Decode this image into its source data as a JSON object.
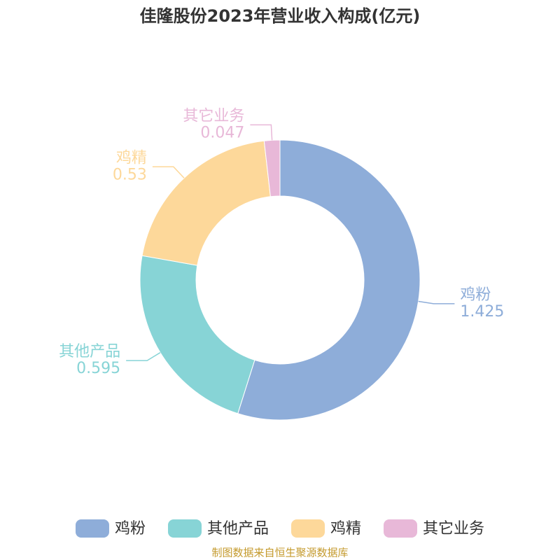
{
  "chart_data": {
    "type": "pie",
    "title": "佳隆股份2023年营业收入构成(亿元)",
    "categories": [
      "鸡粉",
      "其他产品",
      "鸡精",
      "其它业务"
    ],
    "values": [
      1.425,
      0.595,
      0.53,
      0.047
    ],
    "colors": [
      "#8eadd9",
      "#87d4d6",
      "#fdd89a",
      "#e8b8d8"
    ],
    "legend": "bottom",
    "source": "制图数据来自恒生聚源数据库"
  }
}
